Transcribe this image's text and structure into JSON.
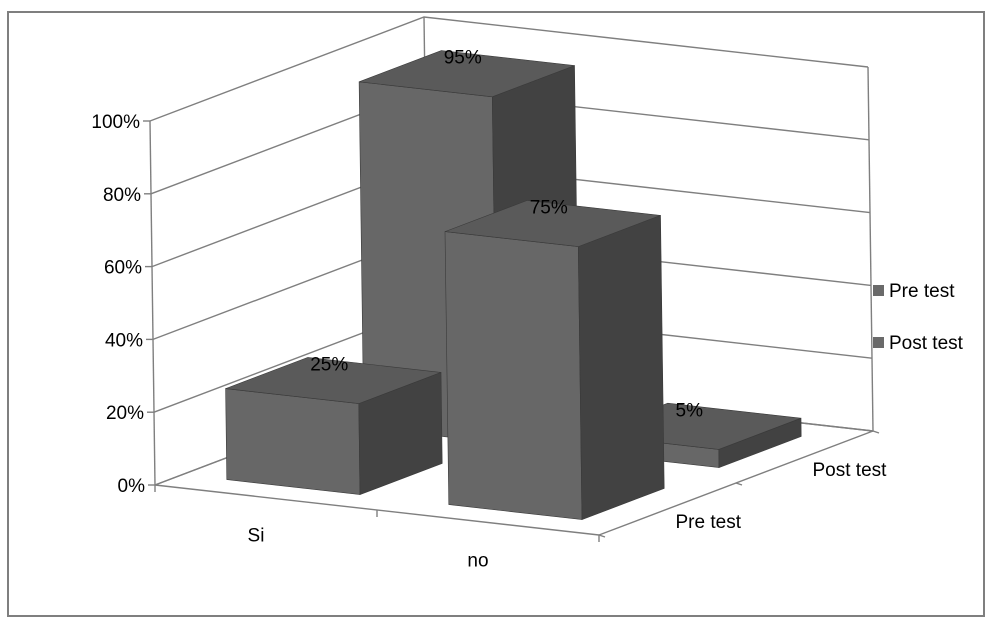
{
  "chart_data": {
    "type": "bar",
    "subtype": "3d-column",
    "title": "",
    "xlabel": "",
    "ylabel": "",
    "categories": [
      "Si",
      "no"
    ],
    "series": [
      {
        "name": "Pre test",
        "values": [
          0.25,
          0.75
        ]
      },
      {
        "name": "Post test",
        "values": [
          0.95,
          0.05
        ]
      }
    ],
    "value_format": "percent",
    "ylim": [
      0,
      1
    ],
    "y_ticks": [
      0,
      0.2,
      0.4,
      0.6,
      0.8,
      1.0
    ],
    "y_tick_labels": [
      "0%",
      "20%",
      "40%",
      "60%",
      "80%",
      "100%"
    ],
    "depth_axis_labels": [
      "Pre test",
      "Post test"
    ],
    "data_labels": [
      [
        "25%",
        "75%"
      ],
      [
        "95%",
        "5%"
      ]
    ],
    "legend": {
      "position": "right",
      "entries": [
        "Pre test",
        "Post test"
      ]
    },
    "grid": true,
    "colors": {
      "front": "#676767",
      "side": "#424242",
      "top": "#5a5a5a",
      "axis": "#7f7f7f",
      "legend_swatch": "#6a6a6a"
    }
  }
}
